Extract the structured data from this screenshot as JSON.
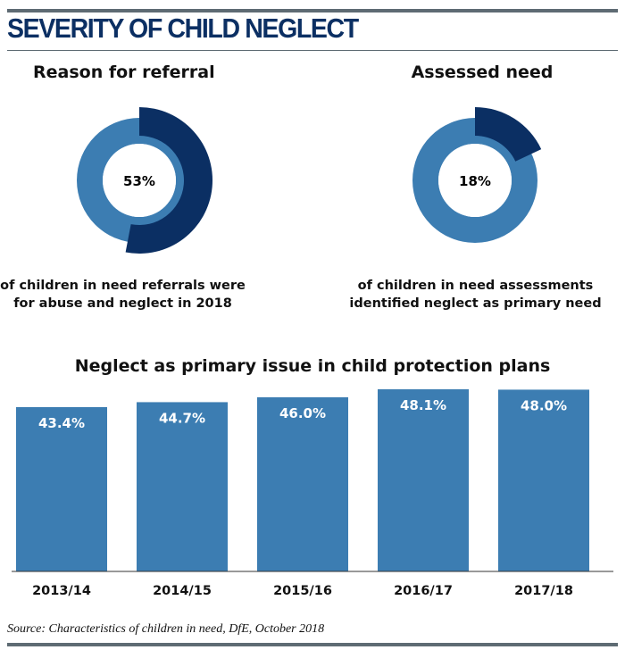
{
  "header": {
    "title": "SEVERITY OF CHILD NEGLECT"
  },
  "colors": {
    "dark": "#0b2f63",
    "mid": "#3c7db2",
    "axis": "#333333",
    "rule": "#5e6b73"
  },
  "chart_data": [
    {
      "type": "pie",
      "title": "Reason for referral",
      "value": 53,
      "center_label": "53%",
      "caption": "of children in need referrals were for abuse and neglect in 2018"
    },
    {
      "type": "pie",
      "title": "Assessed need",
      "value": 18,
      "center_label": "18%",
      "caption": "of children in need assessments identified neglect as primary need"
    },
    {
      "type": "bar",
      "title": "Neglect as primary issue in child protection plans",
      "categories": [
        "2013/14",
        "2014/15",
        "2015/16",
        "2016/17",
        "2017/18"
      ],
      "values": [
        43.4,
        44.7,
        46.0,
        48.1,
        48.0
      ],
      "value_labels": [
        "43.4%",
        "44.7%",
        "46.0%",
        "48.1%",
        "48.0%"
      ],
      "ylim": [
        0,
        55
      ]
    }
  ],
  "source": "Source: Characteristics of children in need, DfE, October 2018"
}
